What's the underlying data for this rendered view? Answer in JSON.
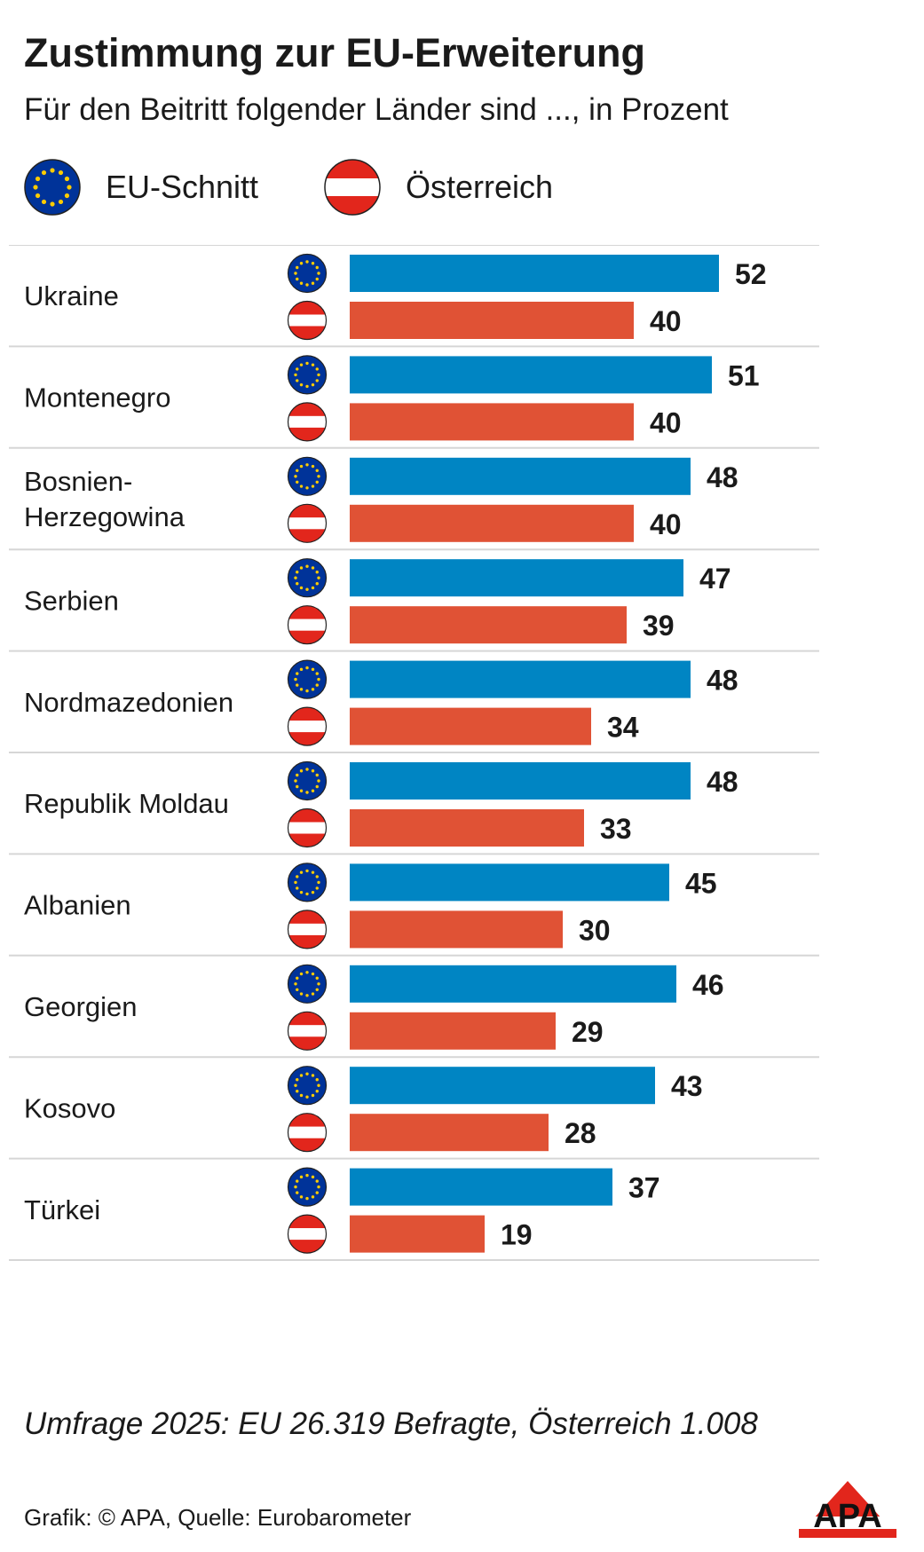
{
  "header": {
    "title": "Zustimmung zur EU-Erweiterung",
    "subtitle": "Für den Beitritt folgender Länder sind ..., in Prozent"
  },
  "legend": [
    {
      "label": "EU-Schnitt",
      "icon": "eu-flag-icon",
      "color": "#0085c3"
    },
    {
      "label": "Österreich",
      "icon": "austria-flag-icon",
      "color": "#e05235"
    }
  ],
  "chart_data": {
    "type": "bar",
    "orientation": "horizontal",
    "title": "Zustimmung zur EU-Erweiterung",
    "subtitle": "Für den Beitritt folgender Länder sind ..., in Prozent",
    "categories": [
      "Ukraine",
      "Montenegro",
      "Bosnien-\nHerzegowina",
      "Serbien",
      "Nordmazedonien",
      "Republik Moldau",
      "Albanien",
      "Georgien",
      "Kosovo",
      "Türkei"
    ],
    "series": [
      {
        "name": "EU-Schnitt",
        "color": "#0085c3",
        "values": [
          52,
          51,
          48,
          47,
          48,
          48,
          45,
          46,
          43,
          37
        ]
      },
      {
        "name": "Österreich",
        "color": "#e05235",
        "values": [
          40,
          40,
          40,
          39,
          34,
          33,
          30,
          29,
          28,
          19
        ]
      }
    ],
    "grid": false,
    "legend_position": "top-left"
  },
  "footnote": "Umfrage 2025: EU 26.319 Befragte, Österreich 1.008",
  "credit": "Grafik: © APA, Quelle: Eurobarometer",
  "logo_text": "APA"
}
